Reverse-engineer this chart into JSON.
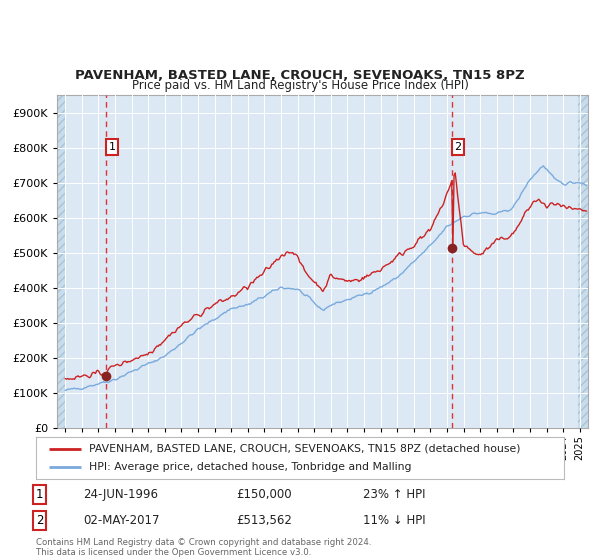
{
  "title": "PAVENHAM, BASTED LANE, CROUCH, SEVENOAKS, TN15 8PZ",
  "subtitle": "Price paid vs. HM Land Registry's House Price Index (HPI)",
  "legend_line1": "PAVENHAM, BASTED LANE, CROUCH, SEVENOAKS, TN15 8PZ (detached house)",
  "legend_line2": "HPI: Average price, detached house, Tonbridge and Malling",
  "sale1_date": "24-JUN-1996",
  "sale1_price": "£150,000",
  "sale1_hpi": "23% ↑ HPI",
  "sale2_date": "02-MAY-2017",
  "sale2_price": "£513,562",
  "sale2_hpi": "11% ↓ HPI",
  "footer": "Contains HM Land Registry data © Crown copyright and database right 2024.\nThis data is licensed under the Open Government Licence v3.0.",
  "bg_color": "#dce9f5",
  "grid_color": "#ffffff",
  "red_line_color": "#cc2222",
  "blue_line_color": "#7aaadd",
  "dashed_line_color": "#dd3333",
  "marker_color": "#882222",
  "sale1_x": 1996.48,
  "sale1_y": 150000,
  "sale2_x": 2017.33,
  "sale2_y": 513562,
  "ylim": [
    0,
    950000
  ],
  "xlim_start": 1993.5,
  "xlim_end": 2025.5,
  "hatch_right_start": 2024.92
}
